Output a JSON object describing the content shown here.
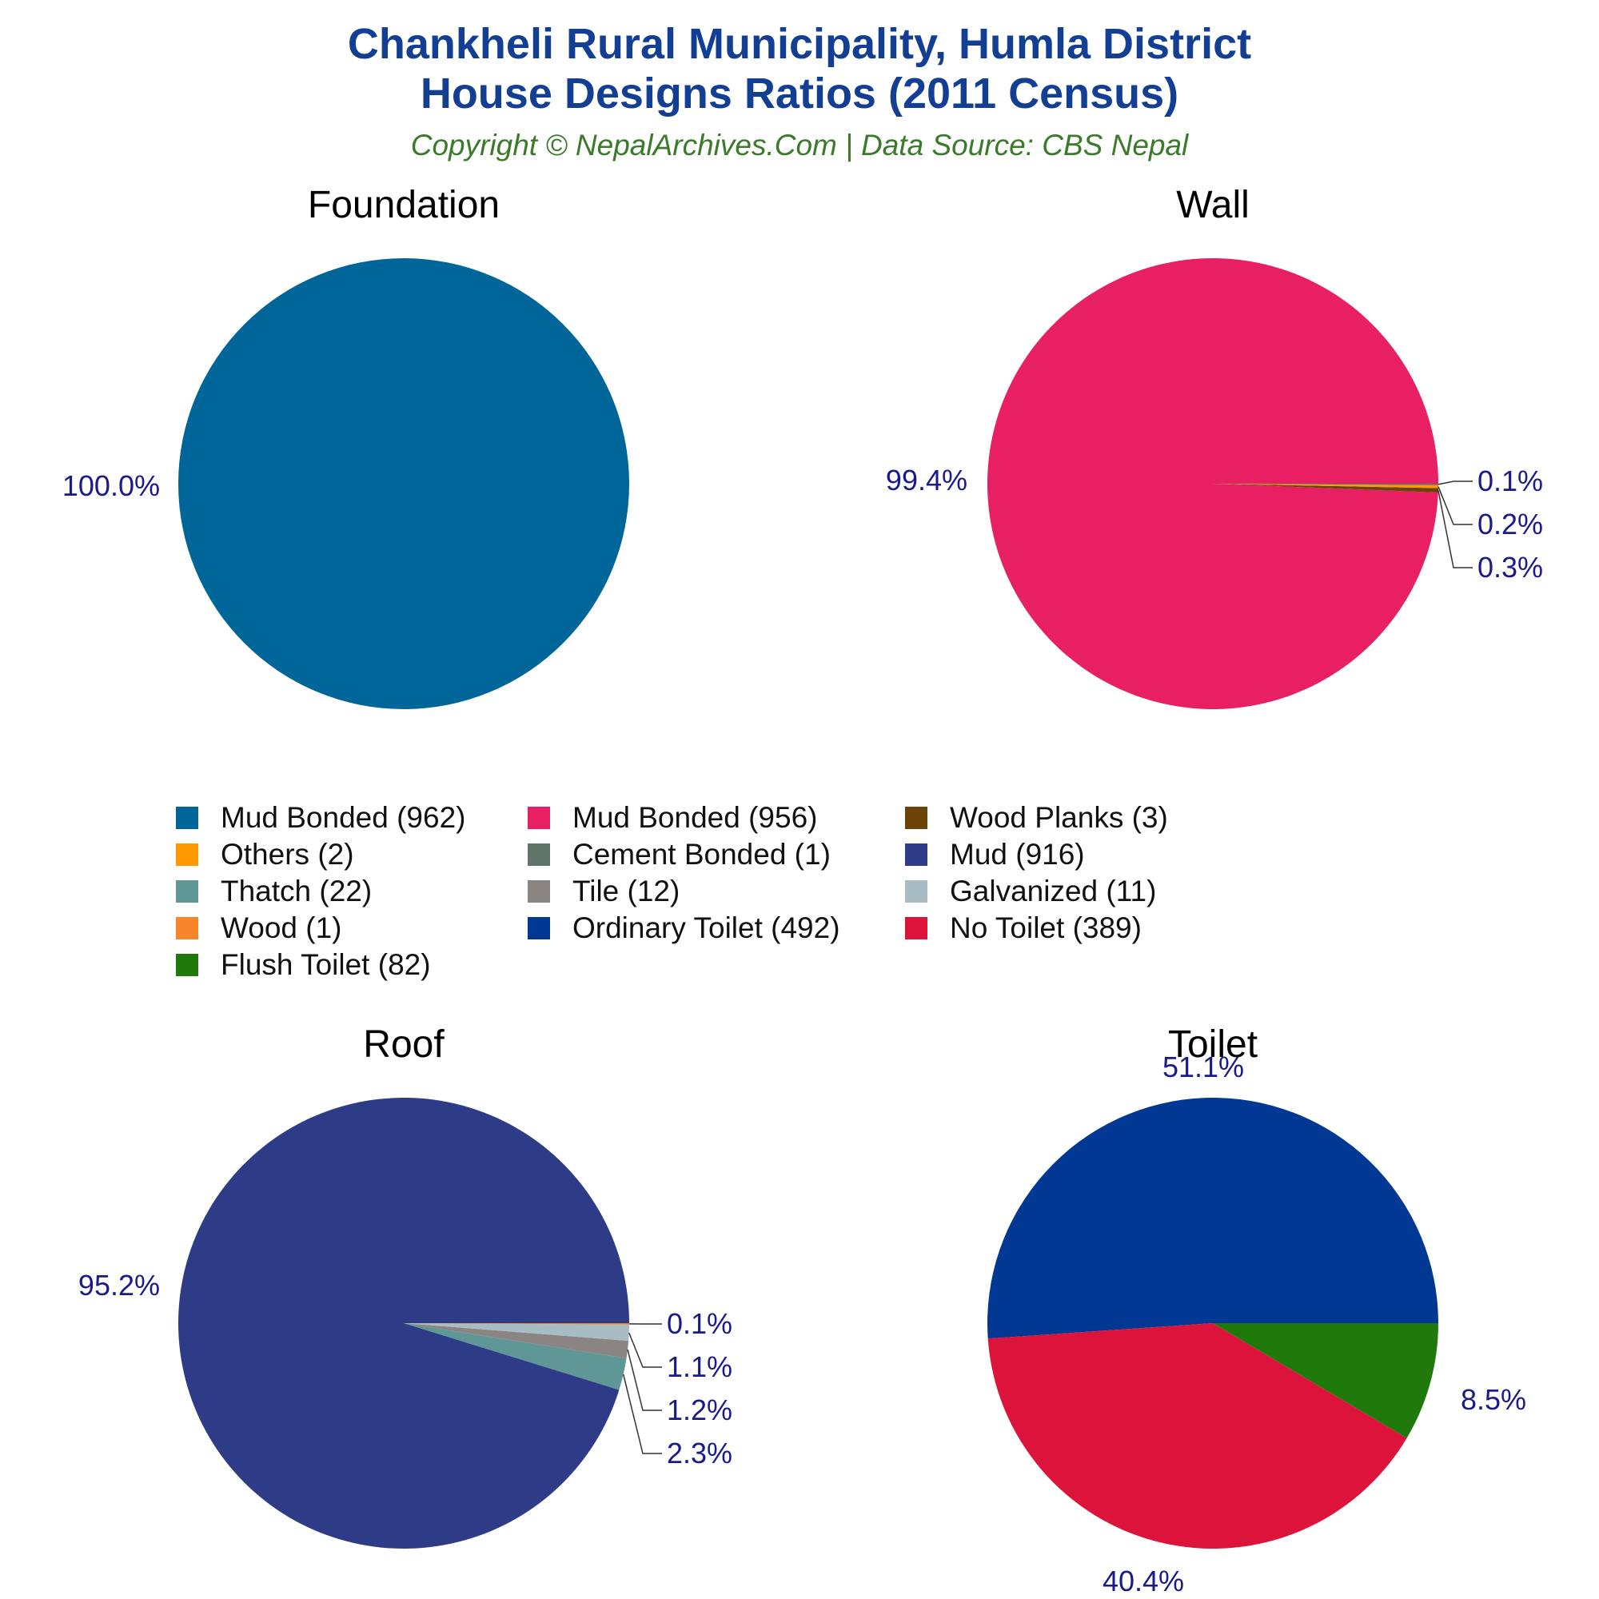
{
  "header": {
    "title_line1": "Chankheli Rural Municipality, Humla District",
    "title_line2": "House Designs Ratios (2011 Census)",
    "subtitle": "Copyright © NepalArchives.Com | Data Source: CBS Nepal"
  },
  "colors": {
    "title": "#123e94",
    "subtitle": "#3a7a2a",
    "percent_label": "#1a1a8c"
  },
  "legend": [
    {
      "label": "Mud Bonded (962)",
      "color": "#006699"
    },
    {
      "label": "Mud Bonded (956)",
      "color": "#e82063"
    },
    {
      "label": "Wood Planks (3)",
      "color": "#6b4208"
    },
    {
      "label": "Others (2)",
      "color": "#ff9900"
    },
    {
      "label": "Cement Bonded (1)",
      "color": "#60756a"
    },
    {
      "label": "Mud (916)",
      "color": "#2e3b87"
    },
    {
      "label": "Thatch (22)",
      "color": "#5f9696"
    },
    {
      "label": "Tile (12)",
      "color": "#8a8583"
    },
    {
      "label": "Galvanized (11)",
      "color": "#a8bcc4"
    },
    {
      "label": "Wood (1)",
      "color": "#f7862a"
    },
    {
      "label": "Ordinary Toilet (492)",
      "color": "#003893"
    },
    {
      "label": "No Toilet (389)",
      "color": "#dc143c"
    },
    {
      "label": "Flush Toilet (82)",
      "color": "#1f7a0b"
    }
  ],
  "chart_data": [
    {
      "type": "pie",
      "title": "Foundation",
      "slices": [
        {
          "name": "Mud Bonded",
          "value": 962,
          "label": "100.0%",
          "color": "#006699"
        }
      ]
    },
    {
      "type": "pie",
      "title": "Wall",
      "slices": [
        {
          "name": "Mud Bonded",
          "value": 956,
          "label": "99.4%",
          "color": "#e82063"
        },
        {
          "name": "Wood Planks",
          "value": 3,
          "label": "0.3%",
          "color": "#6b4208"
        },
        {
          "name": "Others",
          "value": 2,
          "label": "0.2%",
          "color": "#ff9900"
        },
        {
          "name": "Cement Bonded",
          "value": 1,
          "label": "0.1%",
          "color": "#60756a"
        }
      ]
    },
    {
      "type": "pie",
      "title": "Roof",
      "slices": [
        {
          "name": "Mud",
          "value": 916,
          "label": "95.2%",
          "color": "#2e3b87"
        },
        {
          "name": "Thatch",
          "value": 22,
          "label": "2.3%",
          "color": "#5f9696"
        },
        {
          "name": "Tile",
          "value": 12,
          "label": "1.2%",
          "color": "#8a8583"
        },
        {
          "name": "Galvanized",
          "value": 11,
          "label": "1.1%",
          "color": "#a8bcc4"
        },
        {
          "name": "Wood",
          "value": 1,
          "label": "0.1%",
          "color": "#f7862a"
        }
      ]
    },
    {
      "type": "pie",
      "title": "Toilet",
      "slices": [
        {
          "name": "Ordinary Toilet",
          "value": 492,
          "label": "51.1%",
          "color": "#003893"
        },
        {
          "name": "No Toilet",
          "value": 389,
          "label": "40.4%",
          "color": "#dc143c"
        },
        {
          "name": "Flush Toilet",
          "value": 82,
          "label": "8.5%",
          "color": "#1f7a0b"
        }
      ]
    }
  ]
}
